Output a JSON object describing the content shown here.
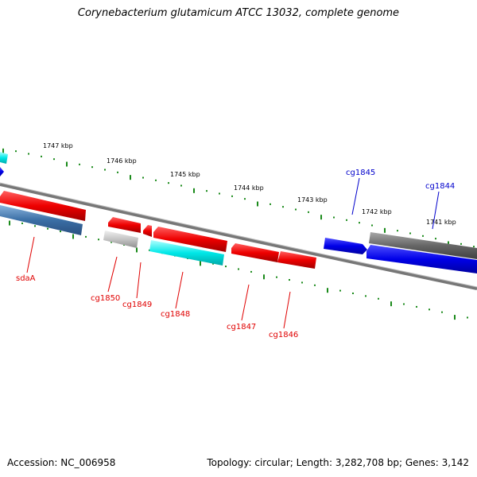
{
  "title": "Corynebacterium glutamicum ATCC 13032, complete genome",
  "footer": {
    "accession": "Accession: NC_006958",
    "topology": "Topology: circular; Length: 3,282,708 bp; Genes: 3,142"
  },
  "ruler": [
    "1747 kbp",
    "1746 kbp",
    "1745 kbp",
    "1744 kbp",
    "1743 kbp",
    "1742 kbp",
    "1741 kbp"
  ],
  "gene_labels": [
    "sdaA",
    "cg1850",
    "cg1849",
    "cg1848",
    "cg1847",
    "cg1846",
    "cg1845",
    "cg1844"
  ],
  "colors": {
    "red": "#e00000",
    "cyan": "#00e0e0",
    "steel_blue": "#3a6ea5",
    "blue": "#0000e0",
    "gray": "#666666",
    "light_gray": "#bbbbbb",
    "tick_green": "#1a8a1a",
    "backbone": "#777777"
  }
}
